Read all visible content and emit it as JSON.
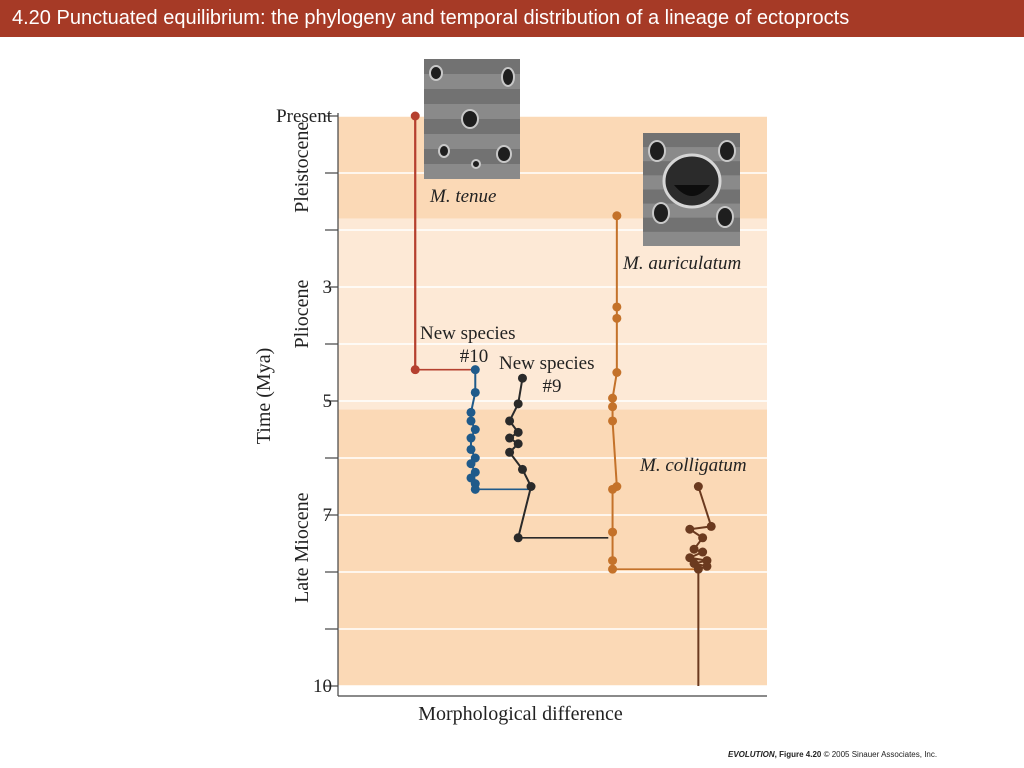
{
  "slide": {
    "title": "4.20  Punctuated equilibrium: the phylogeny and temporal distribution of a lineage of ectoprocts",
    "credit": {
      "book": "EVOLUTION",
      "figure": ", Figure 4.20",
      "copyright": "  © 2005 Sinauer Associates, Inc."
    }
  },
  "colors": {
    "title_bar": "#a63a26",
    "band_pleistocene": "#fbd9b6",
    "band_pliocene": "#fde9d6",
    "band_miocene": "#fbd9b6",
    "tenue": "#b5402f",
    "new10": "#1f5a8a",
    "new9": "#2a2a2a",
    "auriculatum": "#c4722a",
    "colligatum": "#6b3a1f"
  },
  "chart_data": {
    "type": "scatter",
    "xlabel": "Morphological difference",
    "ylabel": "Time (Mya)",
    "ylim": [
      0,
      10
    ],
    "y_inverted": true,
    "y_ticks": [
      0,
      1,
      2,
      3,
      4,
      5,
      6,
      7,
      8,
      9,
      10
    ],
    "y_tick_labels": [
      {
        "value": 0,
        "label": "Present"
      },
      {
        "value": 3,
        "label": "3"
      },
      {
        "value": 5,
        "label": "5"
      },
      {
        "value": 7,
        "label": "7"
      },
      {
        "value": 10,
        "label": "10"
      }
    ],
    "epochs": [
      {
        "name": "Pleistocene",
        "from": 0,
        "to": 1.8,
        "color_key": "band_pleistocene"
      },
      {
        "name": "Pliocene",
        "from": 1.8,
        "to": 5.15,
        "color_key": "band_pliocene"
      },
      {
        "name": "Late Miocene",
        "from": 5.15,
        "to": 10,
        "color_key": "band_miocene"
      }
    ],
    "grid": true,
    "x_numeric_axis": false,
    "xlim": [
      0,
      1
    ],
    "series": [
      {
        "id": "tenue",
        "name": "M. tenue",
        "label_lines": [
          "M. tenue"
        ],
        "italic": true,
        "color_key": "tenue",
        "x": [
          0.18,
          0.18
        ],
        "y": [
          0.0,
          4.45
        ],
        "stem": {
          "x": 0.18,
          "from": 0.0,
          "to": 4.45
        },
        "branch_to": {
          "x": 0.32,
          "y": 4.45
        }
      },
      {
        "id": "new10",
        "name": "New species #10",
        "label_lines": [
          "New species",
          "#10"
        ],
        "italic": false,
        "color_key": "new10",
        "x": [
          0.32,
          0.32,
          0.31,
          0.31,
          0.32,
          0.31,
          0.31,
          0.32,
          0.31,
          0.32,
          0.31,
          0.32,
          0.32
        ],
        "y": [
          4.45,
          4.85,
          5.2,
          5.35,
          5.5,
          5.65,
          5.85,
          6.0,
          6.1,
          6.25,
          6.35,
          6.45,
          6.55
        ],
        "branch_to": {
          "x": 0.45,
          "y": 6.55
        }
      },
      {
        "id": "new9",
        "name": "New species #9",
        "label_lines": [
          "New species",
          "#9"
        ],
        "italic": false,
        "color_key": "new9",
        "x": [
          0.43,
          0.42,
          0.4,
          0.42,
          0.4,
          0.42,
          0.4,
          0.43,
          0.45,
          0.42
        ],
        "y": [
          4.6,
          5.05,
          5.35,
          5.55,
          5.65,
          5.75,
          5.9,
          6.2,
          6.5,
          7.4
        ],
        "branch_to": {
          "x": 0.63,
          "y": 7.4
        }
      },
      {
        "id": "auriculatum",
        "name": "M. auriculatum",
        "label_lines": [
          "M. auriculatum"
        ],
        "italic": true,
        "color_key": "auriculatum",
        "x": [
          0.65,
          0.65,
          0.65,
          0.65,
          0.64,
          0.64,
          0.64,
          0.65,
          0.64,
          0.64,
          0.64,
          0.64
        ],
        "y": [
          1.75,
          3.35,
          3.55,
          4.5,
          4.95,
          5.1,
          5.35,
          6.5,
          6.55,
          7.3,
          7.8,
          7.95
        ],
        "branch_to": {
          "x": 0.84,
          "y": 7.95
        }
      },
      {
        "id": "colligatum",
        "name": "M. colligatum",
        "label_lines": [
          "M. colligatum"
        ],
        "italic": true,
        "color_key": "colligatum",
        "x": [
          0.84,
          0.87,
          0.82,
          0.85,
          0.83,
          0.85,
          0.82,
          0.86,
          0.83,
          0.86,
          0.84
        ],
        "y": [
          6.5,
          7.2,
          7.25,
          7.4,
          7.6,
          7.65,
          7.75,
          7.8,
          7.85,
          7.9,
          7.95
        ],
        "stem": {
          "x": 0.84,
          "from": 7.95,
          "to": 10
        }
      }
    ],
    "images": [
      {
        "id": "tenue-photo",
        "name": "M. tenue specimen photo"
      },
      {
        "id": "auriculatum-photo",
        "name": "M. auriculatum specimen photo"
      }
    ]
  }
}
